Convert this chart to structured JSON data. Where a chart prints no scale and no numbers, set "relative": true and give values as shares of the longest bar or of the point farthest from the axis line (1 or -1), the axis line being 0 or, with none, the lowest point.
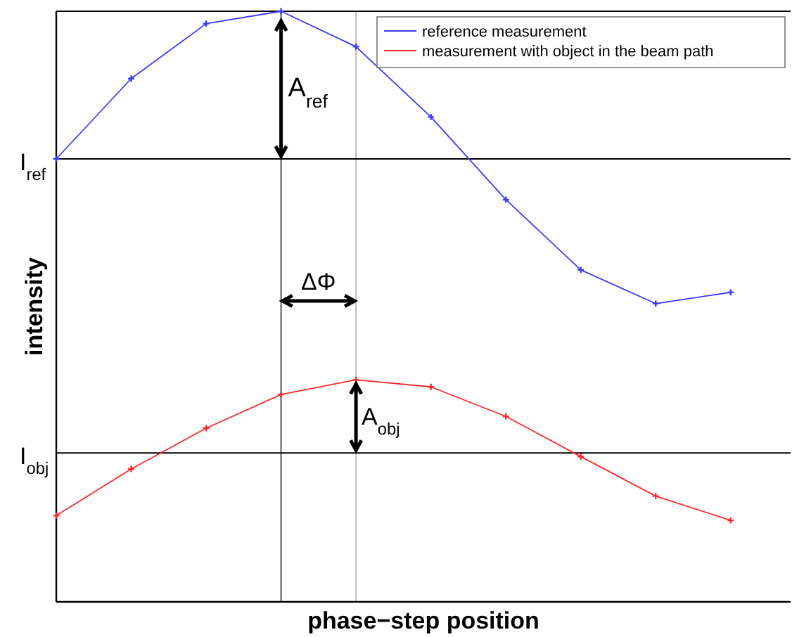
{
  "chart_data": {
    "type": "line",
    "relative": true,
    "xlabel": "phase−step position",
    "ylabel": "intensity",
    "categories": [
      null,
      null,
      null,
      null,
      null,
      null,
      null,
      null,
      null,
      null
    ],
    "legend": "top right",
    "marker": "cross",
    "line_style": "solid",
    "series": [
      {
        "name": "reference measurement",
        "color": "#3a3aff",
        "values": [
          0.75,
          0.886,
          0.979,
          1.0,
          0.94,
          0.821,
          0.681,
          0.562,
          0.505,
          0.524
        ]
      },
      {
        "name": "measurement with object in the beam path",
        "color": "#ff2a2a",
        "values": [
          0.146,
          0.225,
          0.294,
          0.351,
          0.376,
          0.364,
          0.314,
          0.246,
          0.179,
          0.138
        ]
      }
    ],
    "ref_lines": [
      {
        "axis": "y",
        "value": 0.75,
        "label": "I$_{ref}$",
        "color": "#000000"
      },
      {
        "axis": "y",
        "value": 0.252,
        "label": "I$_{obj}$",
        "color": "#000000"
      }
    ],
    "annotations": [
      "A$_{ref}$",
      "ΔΦ",
      "A$_{obj}$"
    ]
  }
}
